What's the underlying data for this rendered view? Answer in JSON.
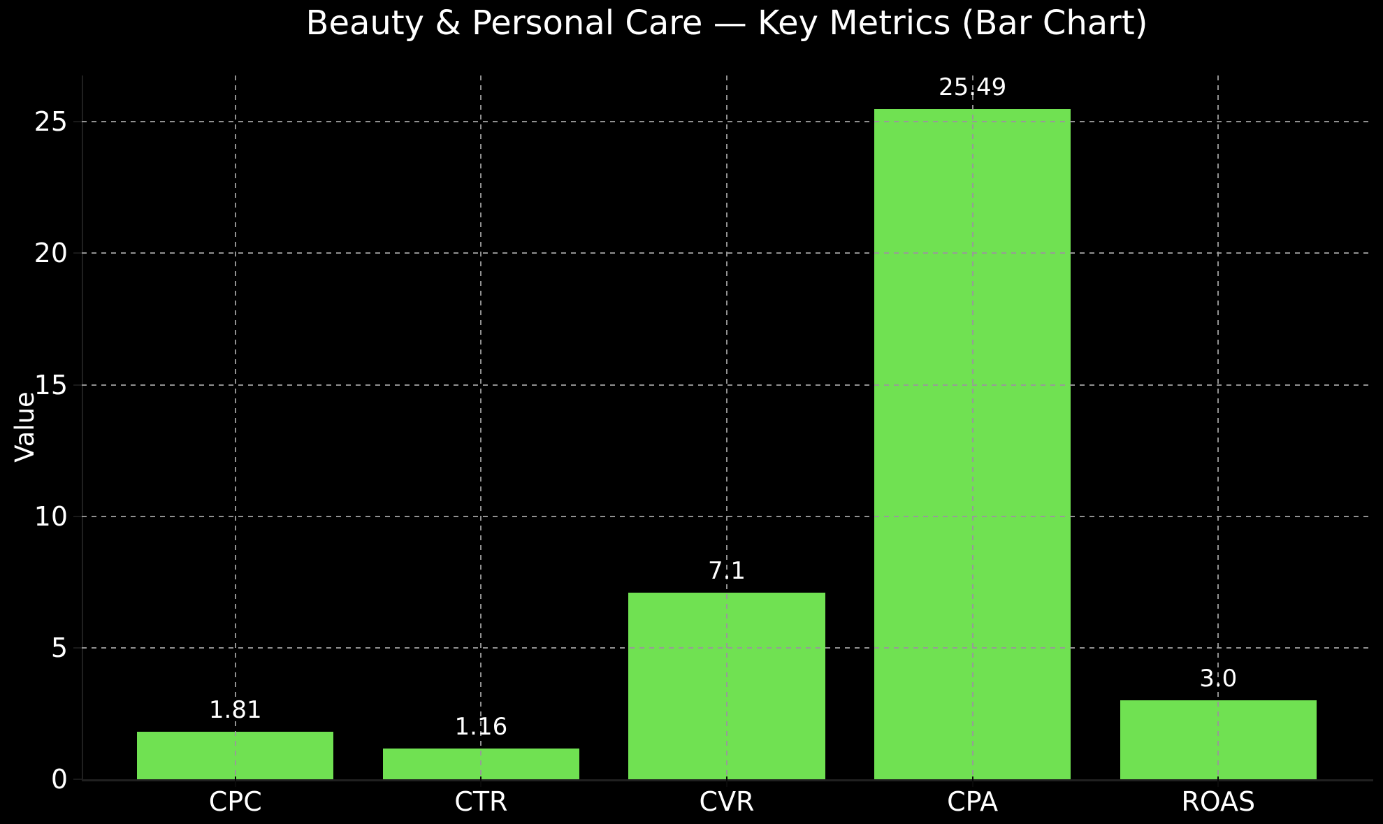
{
  "chart_data": {
    "type": "bar",
    "title": "Beauty & Personal Care — Key Metrics (Bar Chart)",
    "ylabel": "Value",
    "xlabel": "",
    "categories": [
      "CPC",
      "CTR",
      "CVR",
      "CPA",
      "ROAS"
    ],
    "values": [
      1.81,
      1.16,
      7.1,
      25.49,
      3.0
    ],
    "bar_labels": [
      "1.81",
      "1.16",
      "7.1",
      "25.49",
      "3.0"
    ],
    "yticks": [
      0,
      5,
      10,
      15,
      20,
      25
    ],
    "ylim": [
      0,
      26.76
    ],
    "grid": "both-dashed",
    "legend": "none",
    "colors": {
      "background": "#000000",
      "bar": "#70e152",
      "text": "#ffffff",
      "grid": "#999999",
      "spine": "#202020"
    }
  }
}
